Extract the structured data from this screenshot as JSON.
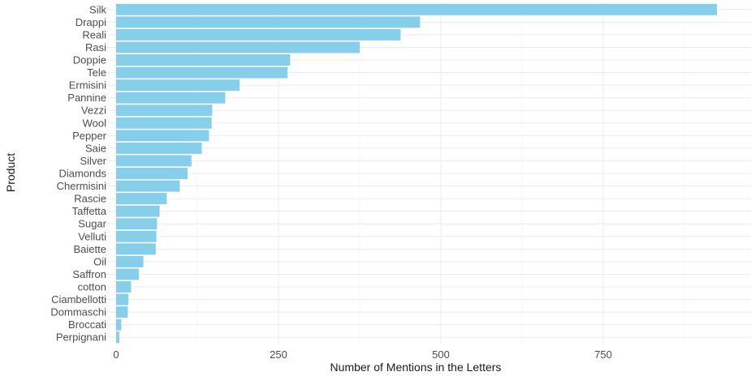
{
  "chart_data": {
    "type": "bar",
    "orientation": "horizontal",
    "title": "",
    "xlabel": "Number of Mentions in the Letters",
    "ylabel": "Product",
    "xlim": [
      0,
      960
    ],
    "xticks": [
      0,
      250,
      500,
      750
    ],
    "grid": true,
    "bar_color": "#87CEEB",
    "categories": [
      "Silk",
      "Drappi",
      "Reali",
      "Rasi",
      "Doppie",
      "Tele",
      "Ermisini",
      "Pannine",
      "Vezzi",
      "Wool",
      "Pepper",
      "Saie",
      "Silver",
      "Diamonds",
      "Chermisini",
      "Rascie",
      "Taffetta",
      "Sugar",
      "Velluti",
      "Baiette",
      "Oil",
      "Saffron",
      "cotton",
      "Ciambellotti",
      "Dommaschi",
      "Broccati",
      "Perpignani"
    ],
    "values": [
      925,
      468,
      438,
      375,
      268,
      264,
      190,
      168,
      148,
      147,
      143,
      132,
      116,
      110,
      98,
      78,
      67,
      63,
      62,
      61,
      42,
      35,
      23,
      19,
      18,
      8,
      5
    ]
  }
}
